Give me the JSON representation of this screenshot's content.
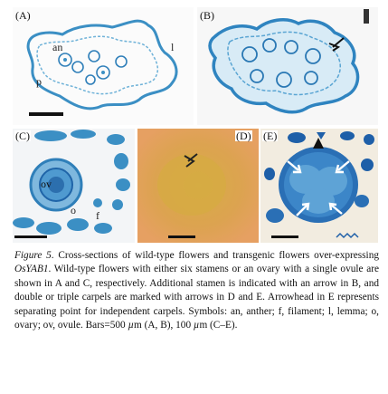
{
  "figure": {
    "panels": [
      {
        "id": "A",
        "label": "(A)",
        "symbols": [
          "an",
          "l",
          "p"
        ]
      },
      {
        "id": "B",
        "label": "(B)",
        "symbols": []
      },
      {
        "id": "C",
        "label": "(C)",
        "symbols": [
          "ov",
          "o",
          "f"
        ]
      },
      {
        "id": "D",
        "label": "(D)",
        "symbols": []
      },
      {
        "id": "E",
        "label": "(E)",
        "symbols": []
      }
    ],
    "colors": {
      "stain_blue": "#3b8fc4",
      "deep_blue": "#1e5fa8",
      "panel_d_bg": "#e3a05a",
      "panel_d_center": "#d6a63f",
      "panel_e_bg": "#e8c070"
    }
  },
  "caption": {
    "fig_label": "Figure 5",
    "p1": ". Cross-sections of wild-type flowers and transgenic flowers over-expressing ",
    "gene": "OsYAB1",
    "p2": ". Wild-type flowers with either six stamens or an ovary with a single ovule are shown in A and C, respectively. Additional stamen is indicated with an arrow in B, and double or triple carpels are marked with arrows in D and E. Arrowhead in E represents separating point for independent carpels. Symbols: an, anther; f, filament; l, lemma; o, ovary; ov, ovule. Bars=500 ",
    "mu1": "µ",
    "p3": "m (A, B), 100 ",
    "mu2": "µ",
    "p4": "m (C–E)."
  }
}
